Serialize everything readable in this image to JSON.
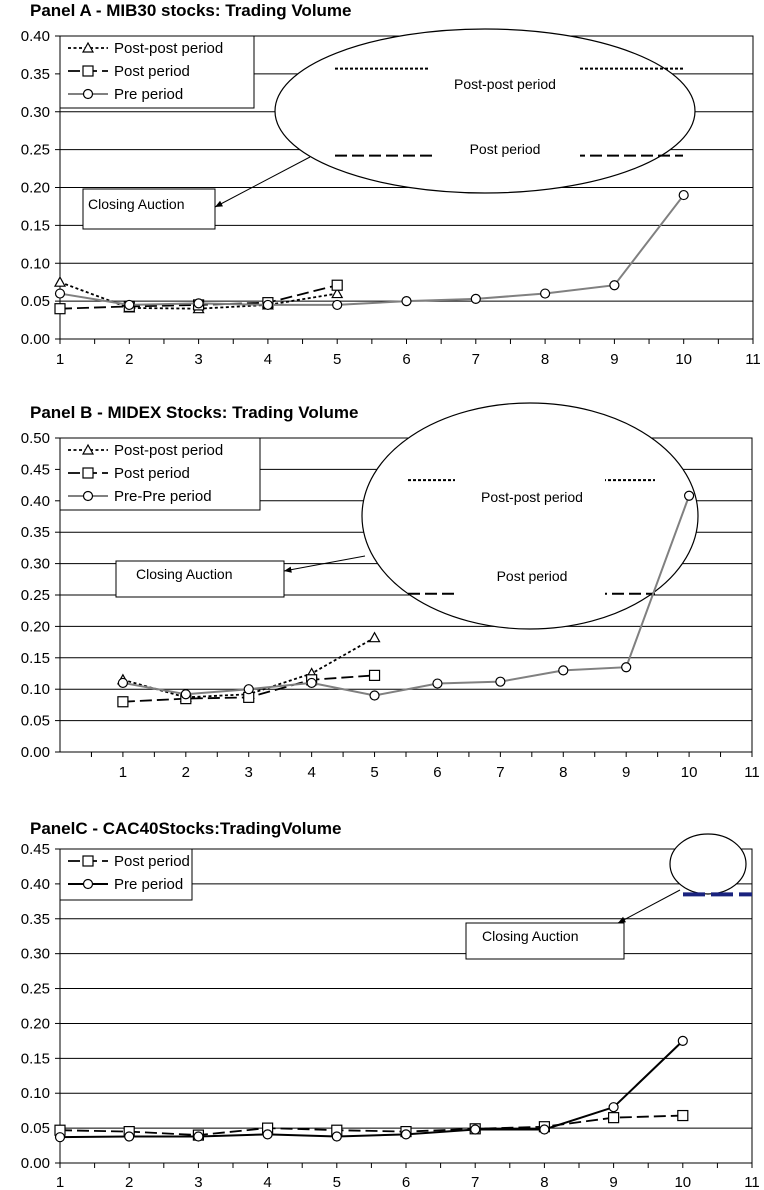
{
  "chart_data": [
    {
      "type": "line",
      "title": "Panel A - MIB30 stocks: Trading Volume",
      "ylim": [
        0,
        0.4
      ],
      "yticks": [
        "0.00",
        "0.05",
        "0.10",
        "0.15",
        "0.20",
        "0.25",
        "0.30",
        "0.35",
        "0.40"
      ],
      "xlim": [
        1,
        11
      ],
      "xticks": [
        "1",
        "2",
        "3",
        "4",
        "5",
        "6",
        "7",
        "8",
        "9",
        "10",
        "11"
      ],
      "grid": "horizontal",
      "legend_position": "top-left",
      "series": [
        {
          "name": "Post-post period",
          "style": "short-dash",
          "marker": "triangle",
          "color": "#000000",
          "x": [
            1,
            2,
            3,
            4,
            5
          ],
          "values": [
            0.075,
            0.041,
            0.04,
            0.045,
            0.06
          ]
        },
        {
          "name": "Post period",
          "style": "long-dash",
          "marker": "square",
          "color": "#000000",
          "x": [
            1,
            2,
            3,
            4,
            5
          ],
          "values": [
            0.04,
            0.043,
            0.045,
            0.048,
            0.071
          ]
        },
        {
          "name": "Pre period",
          "style": "solid",
          "marker": "circle",
          "color": "#808080",
          "x": [
            1,
            2,
            3,
            4,
            5,
            6,
            7,
            8,
            9,
            10
          ],
          "values": [
            0.06,
            0.045,
            0.047,
            0.045,
            0.045,
            0.05,
            0.053,
            0.06,
            0.071,
            0.19
          ]
        }
      ],
      "annotations": {
        "callout_label": "Closing Auction",
        "ellipse_labels": [
          "Post-post period",
          "Post period"
        ],
        "ellipse_levels": [
          0.357,
          0.242
        ]
      }
    },
    {
      "type": "line",
      "title": "Panel B - MIDEX Stocks: Trading Volume",
      "ylim": [
        0,
        0.5
      ],
      "yticks": [
        "0.00",
        "0.05",
        "0.10",
        "0.15",
        "0.20",
        "0.25",
        "0.30",
        "0.35",
        "0.40",
        "0.45",
        "0.50"
      ],
      "xlim": [
        0,
        11
      ],
      "xticks": [
        "1",
        "2",
        "3",
        "4",
        "5",
        "6",
        "7",
        "8",
        "9",
        "10",
        "11"
      ],
      "grid": "horizontal",
      "legend_position": "top-left",
      "series": [
        {
          "name": "Post-post period",
          "style": "short-dash",
          "marker": "triangle",
          "color": "#000000",
          "x": [
            1,
            2,
            3,
            4,
            5
          ],
          "values": [
            0.115,
            0.087,
            0.092,
            0.125,
            0.182
          ]
        },
        {
          "name": "Post period",
          "style": "long-dash",
          "marker": "square",
          "color": "#000000",
          "x": [
            1,
            2,
            3,
            4,
            5
          ],
          "values": [
            0.08,
            0.085,
            0.087,
            0.115,
            0.122
          ]
        },
        {
          "name": "Pre-Pre period",
          "style": "solid",
          "marker": "circle",
          "color": "#808080",
          "x": [
            1,
            2,
            3,
            4,
            5,
            6,
            7,
            8,
            9,
            10
          ],
          "values": [
            0.11,
            0.092,
            0.1,
            0.11,
            0.09,
            0.109,
            0.112,
            0.13,
            0.135,
            0.408
          ]
        }
      ],
      "annotations": {
        "callout_label": "Closing Auction",
        "ellipse_labels": [
          "Post-post period",
          "Post period"
        ],
        "ellipse_levels": [
          0.433,
          0.252
        ]
      }
    },
    {
      "type": "line",
      "title": "PanelC - CAC40Stocks:TradingVolume",
      "ylim": [
        0,
        0.45
      ],
      "yticks": [
        "0.00",
        "0.05",
        "0.10",
        "0.15",
        "0.20",
        "0.25",
        "0.30",
        "0.35",
        "0.40",
        "0.45"
      ],
      "xlim": [
        1,
        11
      ],
      "xticks": [
        "1",
        "2",
        "3",
        "4",
        "5",
        "6",
        "7",
        "8",
        "9",
        "10",
        "11"
      ],
      "grid": "horizontal",
      "legend_position": "top-left",
      "series": [
        {
          "name": "Post period",
          "style": "long-dash",
          "marker": "square",
          "color": "#000000",
          "x": [
            1,
            2,
            3,
            4,
            5,
            6,
            7,
            8,
            9,
            10
          ],
          "values": [
            0.047,
            0.045,
            0.04,
            0.05,
            0.047,
            0.045,
            0.049,
            0.052,
            0.065,
            0.068
          ]
        },
        {
          "name": "Pre period",
          "style": "solid",
          "marker": "circle",
          "color": "#000000",
          "x": [
            1,
            2,
            3,
            4,
            5,
            6,
            7,
            8,
            9,
            10
          ],
          "values": [
            0.037,
            0.038,
            0.038,
            0.041,
            0.038,
            0.041,
            0.048,
            0.048,
            0.08,
            0.175
          ]
        }
      ],
      "annotations": {
        "callout_label": "Closing Auction",
        "ellipse_labels": [],
        "ellipse_levels": [
          0.385
        ],
        "ellipse_color": "#1a237e"
      }
    }
  ]
}
